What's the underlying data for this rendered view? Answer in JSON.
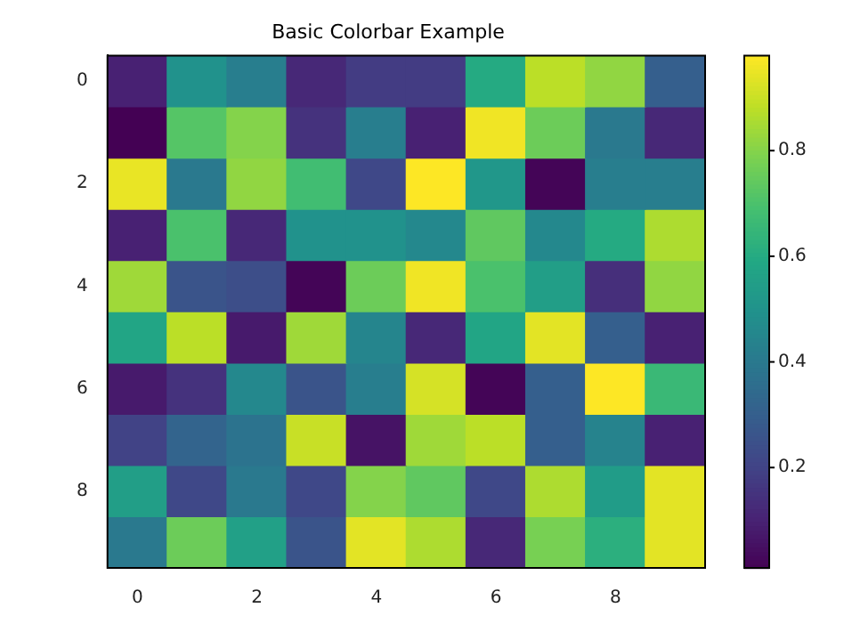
{
  "chart_data": {
    "type": "heatmap",
    "title": "Basic Colorbar Example",
    "categories": [
      "0",
      null,
      "2",
      null,
      "4",
      null,
      "6",
      null,
      "8",
      null
    ],
    "y_categories": [
      "0",
      null,
      "2",
      null,
      "4",
      null,
      "6",
      null,
      "8",
      null
    ],
    "cells": [
      [
        0.1,
        0.5,
        0.42,
        0.12,
        0.18,
        0.18,
        0.6,
        0.88,
        0.82,
        0.3
      ],
      [
        0.01,
        0.72,
        0.8,
        0.15,
        0.42,
        0.1,
        0.96,
        0.76,
        0.4,
        0.12
      ],
      [
        0.95,
        0.4,
        0.82,
        0.68,
        0.22,
        0.98,
        0.52,
        0.02,
        0.42,
        0.42
      ],
      [
        0.1,
        0.7,
        0.12,
        0.5,
        0.5,
        0.46,
        0.74,
        0.46,
        0.6,
        0.86
      ],
      [
        0.84,
        0.26,
        0.24,
        0.02,
        0.76,
        0.96,
        0.7,
        0.55,
        0.14,
        0.82
      ],
      [
        0.58,
        0.88,
        0.08,
        0.84,
        0.45,
        0.12,
        0.58,
        0.94,
        0.3,
        0.1
      ],
      [
        0.08,
        0.15,
        0.46,
        0.26,
        0.42,
        0.92,
        0.02,
        0.3,
        0.98,
        0.66
      ],
      [
        0.2,
        0.32,
        0.38,
        0.9,
        0.06,
        0.84,
        0.88,
        0.3,
        0.44,
        0.1
      ],
      [
        0.55,
        0.22,
        0.4,
        0.22,
        0.8,
        0.74,
        0.22,
        0.86,
        0.54,
        0.94
      ],
      [
        0.4,
        0.76,
        0.56,
        0.26,
        0.94,
        0.86,
        0.12,
        0.78,
        0.62,
        0.94
      ]
    ],
    "clim": [
      0.01,
      0.98
    ],
    "cticks": [
      0.2,
      0.4,
      0.6,
      0.8
    ]
  }
}
